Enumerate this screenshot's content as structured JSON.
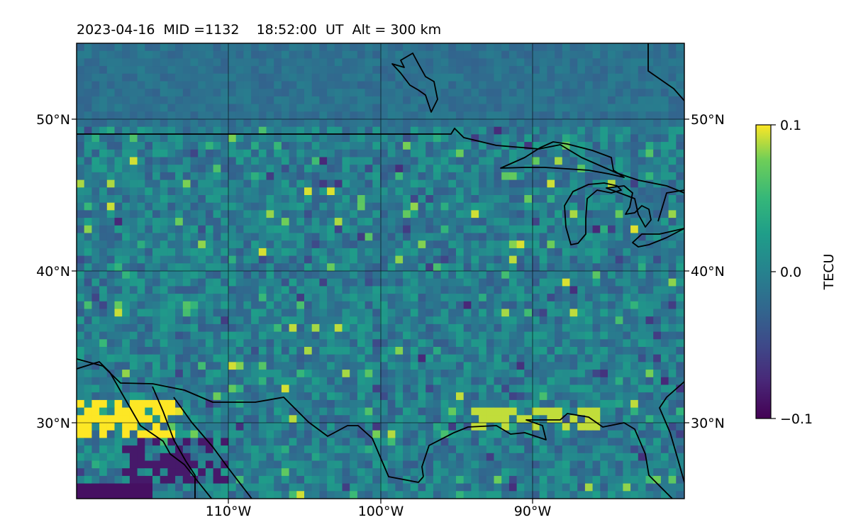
{
  "title": "2023-04-16  MID =1132    18:52:00  UT  Alt = 300 km",
  "map": {
    "lat_labels": [
      "50°N",
      "40°N",
      "30°N"
    ],
    "lat_values": [
      50,
      40,
      30
    ],
    "lon_labels": [
      "110°W",
      "100°W",
      "90°W"
    ],
    "lon_values": [
      -110,
      -100,
      -90
    ],
    "lon_range": [
      -120,
      -80
    ],
    "lat_range": [
      25,
      55
    ],
    "grid": true,
    "coastlines": true
  },
  "colorbar": {
    "label": "TECU",
    "tick_labels": [
      "0.1",
      "0.0",
      "−0.1"
    ],
    "tick_values": [
      0.1,
      0.0,
      -0.1
    ],
    "range": [
      -0.1,
      0.1
    ],
    "colormap": "viridis"
  },
  "colors": {
    "low": "#440154",
    "mid": "#21918c",
    "high": "#fde725"
  }
}
